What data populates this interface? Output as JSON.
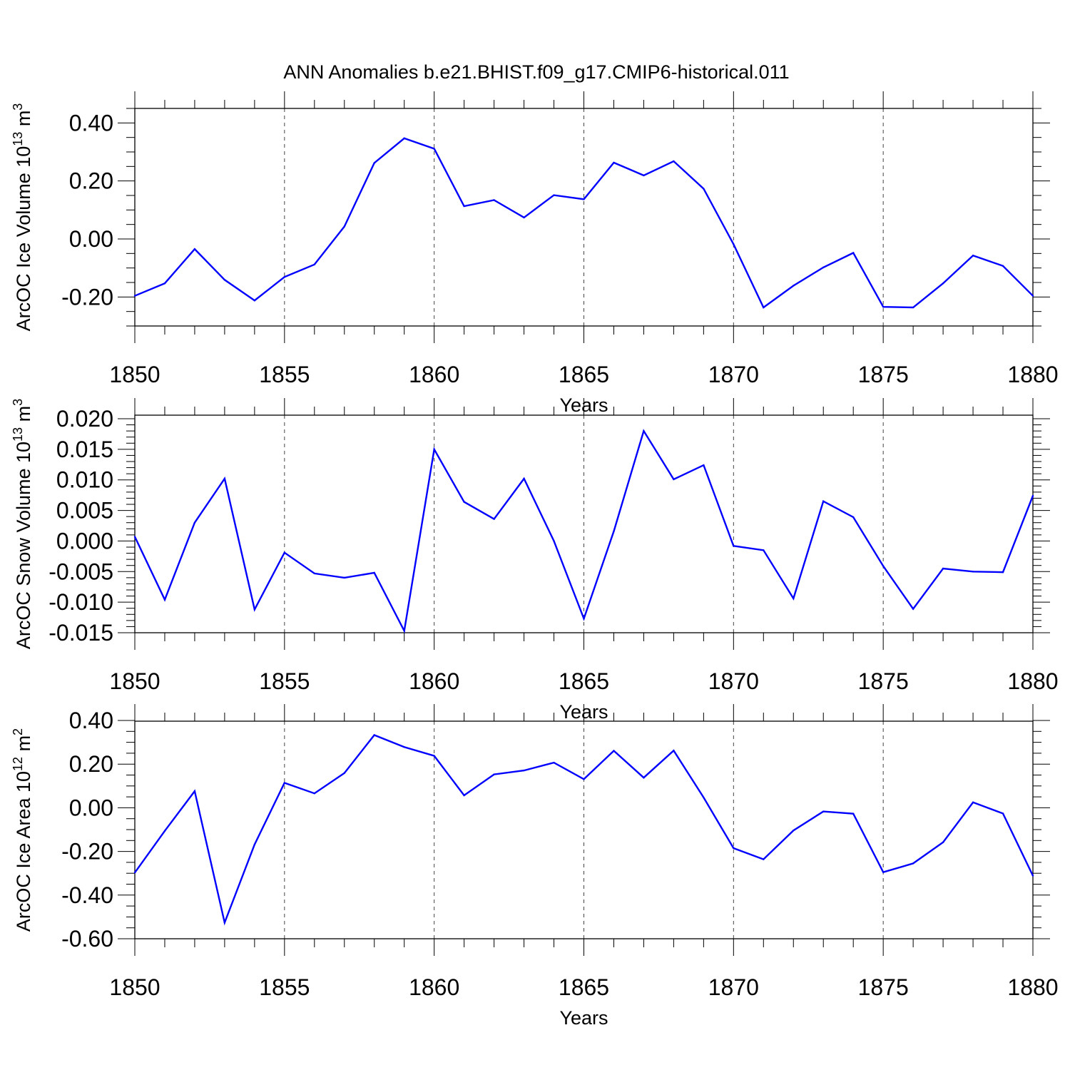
{
  "title": "ANN Anomalies b.e21.BHIST.f09_g17.CMIP6-historical.011",
  "colors": {
    "line": "#0000ff",
    "axis": "#000000",
    "grid": "#444444",
    "background": "#ffffff"
  },
  "chart_data": [
    {
      "type": "line",
      "xlabel": "Years",
      "ylabel": {
        "text": "ArcOC Ice Volume 10",
        "sup": "13",
        "unit": " m",
        "unit_sup": "3"
      },
      "xlim": [
        1850,
        1880
      ],
      "ylim": [
        -0.3,
        0.45
      ],
      "xticks": [
        1850,
        1855,
        1860,
        1865,
        1870,
        1875,
        1880
      ],
      "xtick_labels": [
        "1850",
        "1855",
        "1860",
        "1865",
        "1870",
        "1875",
        "1880"
      ],
      "yticks": [
        -0.2,
        0.0,
        0.2,
        0.4
      ],
      "ytick_labels": [
        "-0.20",
        "0.00",
        "0.20",
        "0.40"
      ],
      "yminor_step": 0.05,
      "grid": "vertical dashed at major x ticks",
      "x": [
        1850,
        1851,
        1852,
        1853,
        1854,
        1855,
        1856,
        1857,
        1858,
        1859,
        1860,
        1861,
        1862,
        1863,
        1864,
        1865,
        1866,
        1867,
        1868,
        1869,
        1870,
        1871,
        1872,
        1873,
        1874,
        1875,
        1876,
        1877,
        1878,
        1879,
        1880
      ],
      "y": [
        -0.196,
        -0.153,
        -0.035,
        -0.141,
        -0.212,
        -0.131,
        -0.088,
        0.043,
        0.262,
        0.347,
        0.311,
        0.113,
        0.134,
        0.074,
        0.151,
        0.137,
        0.263,
        0.219,
        0.268,
        0.173,
        -0.018,
        -0.236,
        -0.161,
        -0.098,
        -0.048,
        -0.234,
        -0.236,
        -0.153,
        -0.057,
        -0.093,
        -0.196
      ]
    },
    {
      "type": "line",
      "xlabel": "Years",
      "ylabel": {
        "text": "ArcOC Snow Volume 10",
        "sup": "13",
        "unit": " m",
        "unit_sup": "3"
      },
      "xlim": [
        1850,
        1880
      ],
      "ylim": [
        -0.015,
        0.02
      ],
      "xticks": [
        1850,
        1855,
        1860,
        1865,
        1870,
        1875,
        1880
      ],
      "xtick_labels": [
        "1850",
        "1855",
        "1860",
        "1865",
        "1870",
        "1875",
        "1880"
      ],
      "yticks": [
        -0.015,
        -0.01,
        -0.005,
        0.0,
        0.005,
        0.01,
        0.015,
        0.02
      ],
      "ytick_labels": [
        "-0.015",
        "-0.010",
        "-0.005",
        "0.000",
        "0.005",
        "0.010",
        "0.015",
        "0.020"
      ],
      "yminor_step": 0.001,
      "grid": "vertical dashed at major x ticks",
      "x": [
        1850,
        1851,
        1852,
        1853,
        1854,
        1855,
        1856,
        1857,
        1858,
        1859,
        1860,
        1861,
        1862,
        1863,
        1864,
        1865,
        1866,
        1867,
        1868,
        1869,
        1870,
        1871,
        1872,
        1873,
        1874,
        1875,
        1876,
        1877,
        1878,
        1879,
        1880
      ],
      "y": [
        0.0007,
        -0.0096,
        0.003,
        0.0102,
        -0.0112,
        -0.0019,
        -0.0053,
        -0.006,
        -0.0052,
        -0.0147,
        0.015,
        0.0064,
        0.0036,
        0.0102,
        0.0,
        -0.0127,
        0.0016,
        0.018,
        0.0101,
        0.0124,
        -0.0008,
        -0.0015,
        -0.0094,
        0.0065,
        0.0039,
        -0.0041,
        -0.0111,
        -0.0045,
        -0.005,
        -0.0051,
        0.0074
      ]
    },
    {
      "type": "line",
      "xlabel": "Years",
      "ylabel": {
        "text": "ArcOC Ice Area 10",
        "sup": "12",
        "unit": " m",
        "unit_sup": "2"
      },
      "xlim": [
        1850,
        1880
      ],
      "ylim": [
        -0.6,
        0.4
      ],
      "xticks": [
        1850,
        1855,
        1860,
        1865,
        1870,
        1875,
        1880
      ],
      "xtick_labels": [
        "1850",
        "1855",
        "1860",
        "1865",
        "1870",
        "1875",
        "1880"
      ],
      "yticks": [
        -0.6,
        -0.4,
        -0.2,
        0.0,
        0.2,
        0.4
      ],
      "ytick_labels": [
        "-0.60",
        "-0.40",
        "-0.20",
        "0.00",
        "0.20",
        "0.40"
      ],
      "yminor_step": 0.05,
      "grid": "vertical dashed at major x ticks",
      "x": [
        1850,
        1851,
        1852,
        1853,
        1854,
        1855,
        1856,
        1857,
        1858,
        1859,
        1860,
        1861,
        1862,
        1863,
        1864,
        1865,
        1866,
        1867,
        1868,
        1869,
        1870,
        1871,
        1872,
        1873,
        1874,
        1875,
        1876,
        1877,
        1878,
        1879,
        1880
      ],
      "y": [
        -0.297,
        -0.106,
        0.076,
        -0.526,
        -0.168,
        0.114,
        0.066,
        0.159,
        0.333,
        0.278,
        0.238,
        0.057,
        0.153,
        0.171,
        0.207,
        0.131,
        0.261,
        0.138,
        0.262,
        0.047,
        -0.185,
        -0.236,
        -0.104,
        -0.017,
        -0.027,
        -0.295,
        -0.255,
        -0.158,
        0.025,
        -0.026,
        -0.311
      ]
    }
  ]
}
